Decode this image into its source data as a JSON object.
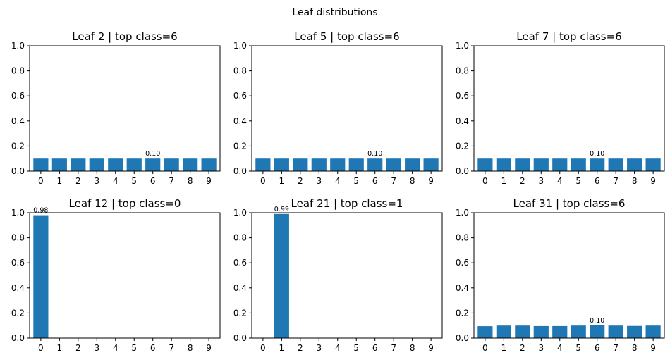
{
  "figure": {
    "suptitle": "Leaf distributions"
  },
  "colors": {
    "bar": "#1f77b4",
    "axis": "#000000"
  },
  "chart_data": [
    {
      "type": "bar",
      "title": "Leaf 2 | top class=6",
      "categories": [
        "0",
        "1",
        "2",
        "3",
        "4",
        "5",
        "6",
        "7",
        "8",
        "9"
      ],
      "values": [
        0.1,
        0.1,
        0.1,
        0.1,
        0.1,
        0.1,
        0.1,
        0.1,
        0.1,
        0.1
      ],
      "ylim": [
        0,
        1
      ],
      "yticks": [
        "0.0",
        "0.2",
        "0.4",
        "0.6",
        "0.8",
        "1.0"
      ],
      "annotation": {
        "category": "6",
        "label": "0.10"
      },
      "grid": false,
      "xlabel": "",
      "ylabel": ""
    },
    {
      "type": "bar",
      "title": "Leaf 5 | top class=6",
      "categories": [
        "0",
        "1",
        "2",
        "3",
        "4",
        "5",
        "6",
        "7",
        "8",
        "9"
      ],
      "values": [
        0.1,
        0.1,
        0.1,
        0.1,
        0.1,
        0.1,
        0.1,
        0.1,
        0.1,
        0.1
      ],
      "ylim": [
        0,
        1
      ],
      "yticks": [
        "0.0",
        "0.2",
        "0.4",
        "0.6",
        "0.8",
        "1.0"
      ],
      "annotation": {
        "category": "6",
        "label": "0.10"
      },
      "grid": false,
      "xlabel": "",
      "ylabel": ""
    },
    {
      "type": "bar",
      "title": "Leaf 7 | top class=6",
      "categories": [
        "0",
        "1",
        "2",
        "3",
        "4",
        "5",
        "6",
        "7",
        "8",
        "9"
      ],
      "values": [
        0.1,
        0.1,
        0.1,
        0.1,
        0.1,
        0.1,
        0.1,
        0.1,
        0.1,
        0.1
      ],
      "ylim": [
        0,
        1
      ],
      "yticks": [
        "0.0",
        "0.2",
        "0.4",
        "0.6",
        "0.8",
        "1.0"
      ],
      "annotation": {
        "category": "6",
        "label": "0.10"
      },
      "grid": false,
      "xlabel": "",
      "ylabel": ""
    },
    {
      "type": "bar",
      "title": "Leaf 12 | top class=0",
      "categories": [
        "0",
        "1",
        "2",
        "3",
        "4",
        "5",
        "6",
        "7",
        "8",
        "9"
      ],
      "values": [
        0.98,
        0,
        0,
        0,
        0,
        0,
        0,
        0,
        0,
        0
      ],
      "ylim": [
        0,
        1
      ],
      "yticks": [
        "0.0",
        "0.2",
        "0.4",
        "0.6",
        "0.8",
        "1.0"
      ],
      "annotation": {
        "category": "0",
        "label": "0.98"
      },
      "grid": false,
      "xlabel": "",
      "ylabel": ""
    },
    {
      "type": "bar",
      "title": "Leaf 21 | top class=1",
      "categories": [
        "0",
        "1",
        "2",
        "3",
        "4",
        "5",
        "6",
        "7",
        "8",
        "9"
      ],
      "values": [
        0,
        0.99,
        0,
        0,
        0,
        0,
        0,
        0,
        0,
        0
      ],
      "ylim": [
        0,
        1
      ],
      "yticks": [
        "0.0",
        "0.2",
        "0.4",
        "0.6",
        "0.8",
        "1.0"
      ],
      "annotation": {
        "category": "1",
        "label": "0.99"
      },
      "grid": false,
      "xlabel": "",
      "ylabel": ""
    },
    {
      "type": "bar",
      "title": "Leaf 31 | top class=6",
      "categories": [
        "0",
        "1",
        "2",
        "3",
        "4",
        "5",
        "6",
        "7",
        "8",
        "9"
      ],
      "values": [
        0.095,
        0.1,
        0.1,
        0.096,
        0.096,
        0.1,
        0.102,
        0.1,
        0.097,
        0.1
      ],
      "ylim": [
        0,
        1
      ],
      "yticks": [
        "0.0",
        "0.2",
        "0.4",
        "0.6",
        "0.8",
        "1.0"
      ],
      "annotation": {
        "category": "6",
        "label": "0.10"
      },
      "grid": false,
      "xlabel": "",
      "ylabel": ""
    }
  ]
}
